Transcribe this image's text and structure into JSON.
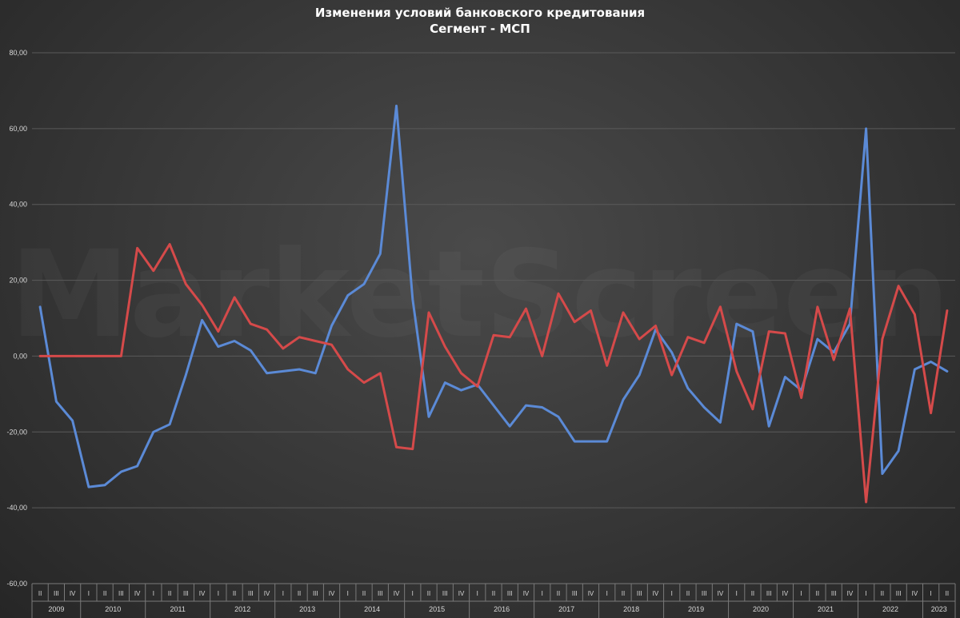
{
  "title": "Изменения условий банковского кредитования",
  "subtitle": "Сегмент - МСП",
  "watermark": "MarketScreen",
  "colors": {
    "series_blue": "#5b8ad6",
    "series_red": "#d54a4a",
    "grid": "#5a5a5a"
  },
  "chart_data": {
    "type": "line",
    "title": "Изменения условий банковского кредитования",
    "subtitle": "Сегмент - МСП",
    "ylim": [
      -60,
      80
    ],
    "y_ticks": [
      "-60,00",
      "-40,00",
      "-20,00",
      "0,00",
      "20,00",
      "40,00",
      "60,00",
      "80,00"
    ],
    "y_tick_values": [
      -60,
      -40,
      -20,
      0,
      20,
      40,
      60,
      80
    ],
    "grid": true,
    "legend": "none",
    "years": [
      {
        "label": "2009",
        "quarters": [
          "II",
          "III",
          "IV"
        ]
      },
      {
        "label": "2010",
        "quarters": [
          "I",
          "II",
          "III",
          "IV"
        ]
      },
      {
        "label": "2011",
        "quarters": [
          "I",
          "II",
          "III",
          "IV"
        ]
      },
      {
        "label": "2012",
        "quarters": [
          "I",
          "II",
          "III",
          "IV"
        ]
      },
      {
        "label": "2013",
        "quarters": [
          "I",
          "II",
          "III",
          "IV"
        ]
      },
      {
        "label": "2014",
        "quarters": [
          "I",
          "II",
          "III",
          "IV"
        ]
      },
      {
        "label": "2015",
        "quarters": [
          "I",
          "II",
          "III",
          "IV"
        ]
      },
      {
        "label": "2016",
        "quarters": [
          "I",
          "II",
          "III",
          "IV"
        ]
      },
      {
        "label": "2017",
        "quarters": [
          "I",
          "II",
          "III",
          "IV"
        ]
      },
      {
        "label": "2018",
        "quarters": [
          "I",
          "II",
          "III",
          "IV"
        ]
      },
      {
        "label": "2019",
        "quarters": [
          "I",
          "II",
          "III",
          "IV"
        ]
      },
      {
        "label": "2020",
        "quarters": [
          "I",
          "II",
          "III",
          "IV"
        ]
      },
      {
        "label": "2021",
        "quarters": [
          "I",
          "II",
          "III",
          "IV"
        ]
      },
      {
        "label": "2022",
        "quarters": [
          "I",
          "II",
          "III",
          "IV"
        ]
      },
      {
        "label": "2023",
        "quarters": [
          "I",
          "II"
        ]
      }
    ],
    "series": [
      {
        "color": "#5b8ad6",
        "values": [
          13,
          -12,
          -17,
          -34.5,
          -34,
          -30.5,
          -29,
          -20,
          -18,
          -5,
          9.5,
          2.5,
          4,
          1.5,
          -4.5,
          -4,
          -3.5,
          -4.5,
          8,
          16,
          19,
          27,
          66,
          15,
          -16,
          -7,
          -9,
          -7.5,
          -13,
          -18.5,
          -13,
          -13.5,
          -16,
          -22.5,
          -22.5,
          -22.5,
          -11.5,
          -5,
          7,
          1,
          -8.5,
          -13.5,
          -17.5,
          8.5,
          6.5,
          -18.5,
          -5.5,
          -9,
          4.5,
          1,
          8.5,
          60,
          -31,
          -25,
          -3.5,
          -1.5,
          -4
        ]
      },
      {
        "color": "#d54a4a",
        "values": [
          0,
          0,
          0,
          0,
          0,
          0,
          28.5,
          22.5,
          29.5,
          19,
          13.5,
          6.5,
          15.5,
          8.5,
          7,
          2,
          5,
          4,
          3,
          -3.5,
          -7,
          -4.5,
          -24,
          -24.5,
          11.5,
          2.5,
          -4.5,
          -8,
          5.5,
          5,
          12.5,
          0,
          16.5,
          9,
          12,
          -2.5,
          11.5,
          4.5,
          8,
          -5,
          5,
          3.5,
          13,
          -4,
          -14,
          6.5,
          6,
          -11,
          13,
          -1,
          12.5,
          -38.5,
          4.5,
          18.5,
          11,
          -15,
          12
        ]
      }
    ]
  }
}
